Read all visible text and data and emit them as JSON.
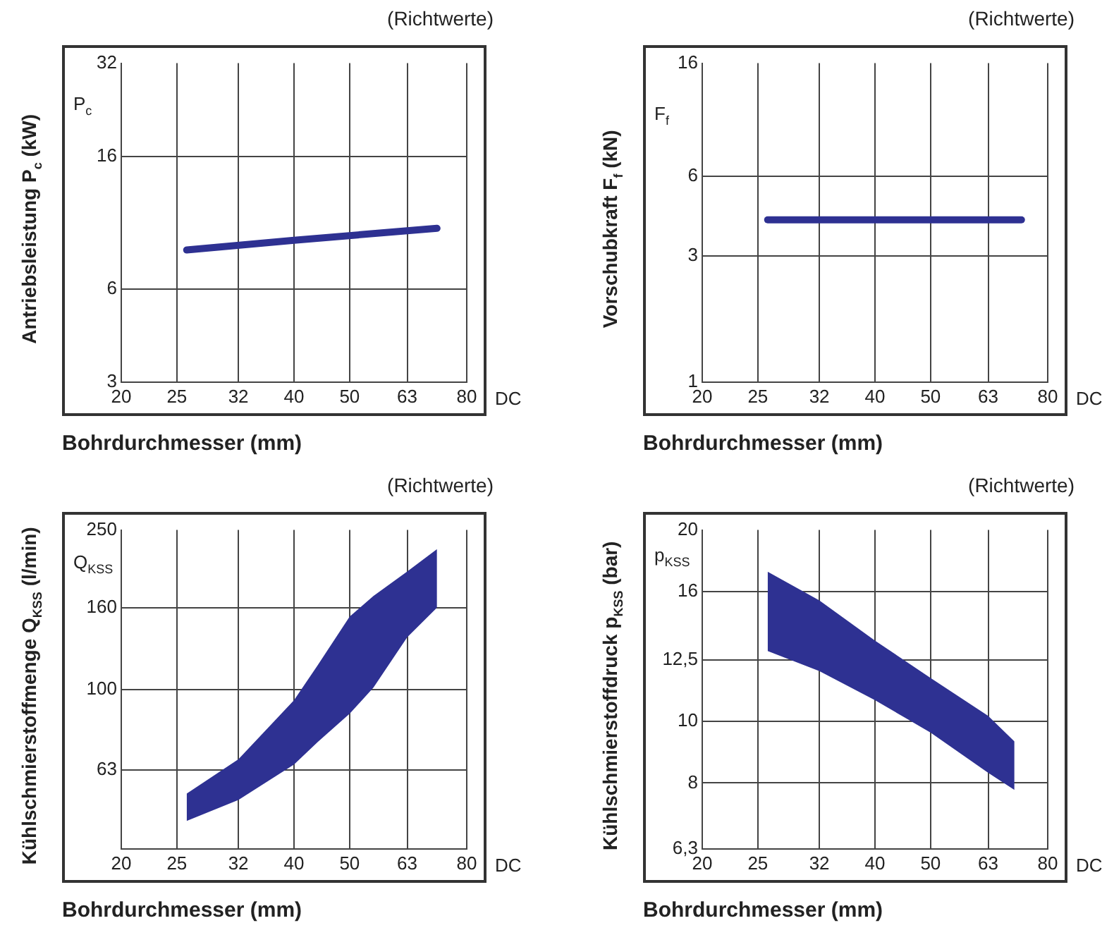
{
  "chart_data": [
    {
      "type": "line",
      "title": "(Richtwerte)",
      "xlabel": "Bohrdurchmesser (mm)",
      "ylabel": "Antriebsleistung P$_{c}$ (kW)",
      "annotations": [
        "P$_{c}$",
        "DC"
      ],
      "log": "xy",
      "grid": true,
      "legend": false,
      "marker": "none",
      "xlim": [
        20,
        80
      ],
      "xticks": [
        20,
        25,
        32,
        40,
        50,
        63,
        80
      ],
      "ylim": [
        3,
        32
      ],
      "yticks": [
        3,
        6,
        16,
        32
      ],
      "x": [
        26,
        40,
        71
      ],
      "series": [
        {
          "color": "#2e3192",
          "values": [
            8.0,
            8.6,
            9.4
          ]
        }
      ]
    },
    {
      "type": "line",
      "title": "(Richtwerte)",
      "xlabel": "Bohrdurchmesser (mm)",
      "ylabel": "Vorschubkraft F$_{f}$ (kN)",
      "annotations": [
        "F$_{f}$",
        "DC"
      ],
      "log": "xy",
      "grid": true,
      "legend": false,
      "marker": "none",
      "xlim": [
        20,
        80
      ],
      "xticks": [
        20,
        25,
        32,
        40,
        50,
        63,
        80
      ],
      "ylim": [
        1,
        16
      ],
      "yticks": [
        1,
        3,
        6,
        16
      ],
      "x": [
        26,
        72
      ],
      "series": [
        {
          "color": "#2e3192",
          "values": [
            4.1,
            4.1
          ]
        }
      ]
    },
    {
      "type": "area",
      "title": "(Richtwerte)",
      "xlabel": "Bohrdurchmesser (mm)",
      "ylabel": "Kühlschmierstoffmenge Q$_{KSS}$ (l/min)",
      "annotations": [
        "Q$_{KSS}$",
        "DC"
      ],
      "log": "xy",
      "grid": true,
      "legend": false,
      "xlim": [
        20,
        80
      ],
      "xticks": [
        20,
        25,
        32,
        40,
        50,
        63,
        80
      ],
      "ylim": [
        40,
        250
      ],
      "yticks": [
        63,
        100,
        160,
        250
      ],
      "x": [
        26,
        32,
        40,
        44,
        50,
        55,
        63,
        71
      ],
      "series": [
        {
          "color": "#2e3192",
          "values": [
            null,
            null,
            null,
            null,
            null,
            null,
            null,
            null
          ],
          "lower": [
            47,
            53,
            65,
            74,
            87,
            101,
            135,
            160
          ],
          "upper": [
            55,
            67,
            94,
            115,
            152,
            171,
            197,
            224
          ]
        }
      ]
    },
    {
      "type": "area",
      "title": "(Richtwerte)",
      "xlabel": "Bohrdurchmesser (mm)",
      "ylabel": "Kühlschmierstoffdruck p$_{KSS}$ (bar)",
      "annotations": [
        "p$_{KSS}$",
        "DC"
      ],
      "log": "xy",
      "grid": true,
      "legend": false,
      "xlim": [
        20,
        80
      ],
      "xticks": [
        20,
        25,
        32,
        40,
        50,
        63,
        80
      ],
      "ylim": [
        6.3,
        20
      ],
      "yticks": [
        {
          "value": 6.3,
          "label": "6,3"
        },
        8,
        10,
        {
          "value": 12.5,
          "label": "12,5"
        },
        16,
        20
      ],
      "x": [
        26,
        32,
        40,
        50,
        63,
        70
      ],
      "series": [
        {
          "color": "#2e3192",
          "values": [
            null,
            null,
            null,
            null,
            null,
            null
          ],
          "lower": [
            12.9,
            12.0,
            10.8,
            9.6,
            8.3,
            7.8
          ],
          "upper": [
            17.2,
            15.5,
            13.4,
            11.7,
            10.2,
            9.3
          ]
        }
      ]
    }
  ]
}
